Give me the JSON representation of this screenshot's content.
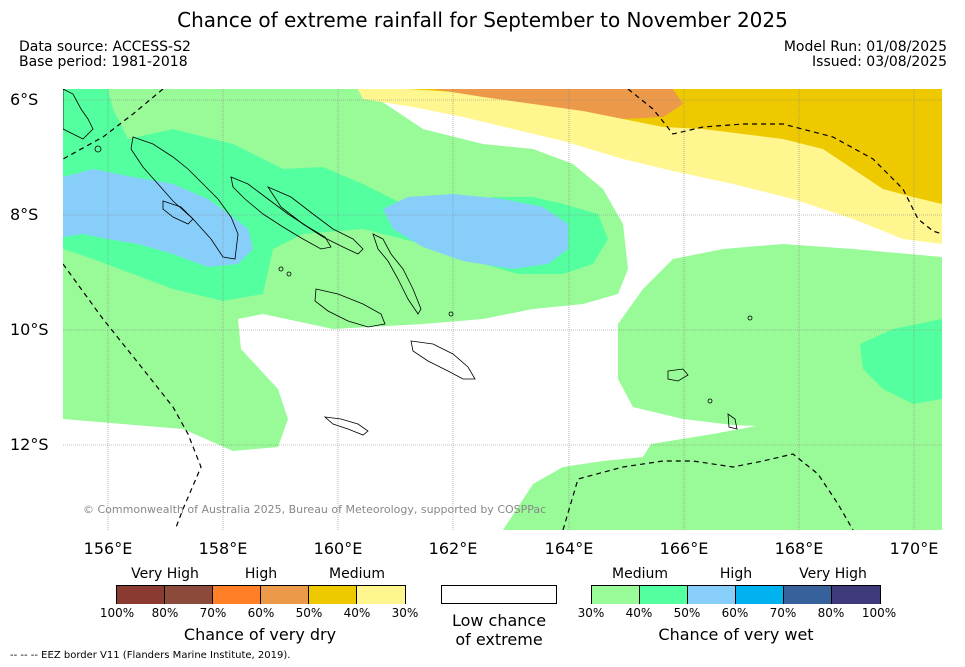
{
  "title": "Chance of extreme rainfall for September to November 2025",
  "meta": {
    "data_source": "Data source: ACCESS-S2",
    "base_period": "Base period: 1981-2018",
    "model_run": "Model Run: 01/08/2025",
    "issued": "Issued: 03/08/2025"
  },
  "map": {
    "lat_labels": [
      "6°S",
      "8°S",
      "10°S",
      "12°S"
    ],
    "lon_labels": [
      "156°E",
      "158°E",
      "160°E",
      "162°E",
      "164°E",
      "166°E",
      "168°E",
      "170°E"
    ],
    "lat_range": [
      "5.8°S",
      "13.5°S"
    ],
    "lon_range": [
      "155.2°E",
      "170.5°E"
    ],
    "graticule": true,
    "copyright": "© Commonwealth of Australia 2025, Bureau of Meteorology, supported by COSPPac",
    "colors": {
      "very_dry_very_high": "#8b3a32",
      "very_dry_very_high_2": "#8b4a3a",
      "dry_high": "#ff7f27",
      "dry_high_2": "#ec9a4a",
      "dry_medium": "#eec900",
      "dry_medium_2": "#fff68f",
      "low": "#ffffff",
      "wet_medium": "#98fb98",
      "wet_medium_2": "#54ff9f",
      "wet_high": "#87cefa",
      "wet_high_2": "#00b2ee",
      "wet_very_high": "#36619b",
      "wet_very_high_2": "#3f3a7b"
    }
  },
  "legend": {
    "dry": {
      "categories": [
        "Very High",
        "High",
        "Medium"
      ],
      "ticks": [
        "100%",
        "80%",
        "70%",
        "60%",
        "50%",
        "40%",
        "30%"
      ],
      "title": "Chance of very dry"
    },
    "low": {
      "title_line1": "Low chance",
      "title_line2": "of extreme"
    },
    "wet": {
      "categories": [
        "Medium",
        "High",
        "Very High"
      ],
      "ticks": [
        "30%",
        "40%",
        "50%",
        "60%",
        "70%",
        "80%",
        "100%"
      ],
      "title": "Chance of very wet"
    }
  },
  "footnote": "--  --  -- EEZ border V11 (Flanders Marine Institute, 2019)."
}
